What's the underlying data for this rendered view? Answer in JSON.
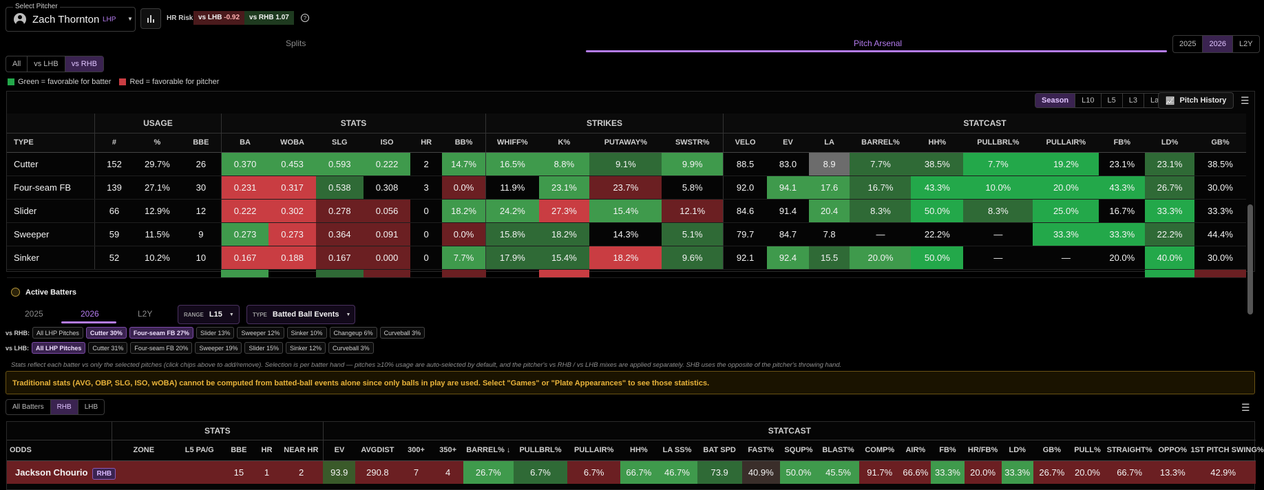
{
  "header": {
    "select_label": "Select Pitcher",
    "pitcher_name": "Zach Thornton",
    "pitcher_hand": "LHP",
    "hr_risk_label": "HR Risk",
    "vs_lhb_label": "vs LHB",
    "vs_lhb_value": "-0.92",
    "vs_rhb_label": "vs RHB",
    "vs_rhb_value": "1.07"
  },
  "top_tabs": {
    "splits": "Splits",
    "arsenal": "Pitch Arsenal"
  },
  "year_tabs": [
    "2025",
    "2026",
    "L2Y"
  ],
  "split_filter": [
    "All",
    "vs LHB",
    "vs RHB"
  ],
  "legend": {
    "green": "Green = favorable for batter",
    "red": "Red = favorable for pitcher"
  },
  "range_tabs": [
    "Season",
    "L10",
    "L5",
    "L3",
    "Last"
  ],
  "pitch_history_label": "Pitch History",
  "colors": {
    "accent": "#b57cf0",
    "green_strong": "#23a84a",
    "green": "#3f9a4c",
    "green_dark": "#2f6a36",
    "red_strong": "#c93d42",
    "red_dark": "#6b1f22"
  },
  "arsenal": {
    "groups": [
      "",
      "USAGE",
      "STATS",
      "STRIKES",
      "STATCAST"
    ],
    "columns": [
      "TYPE",
      "#",
      "%",
      "BBE",
      "BA",
      "WOBA",
      "SLG",
      "ISO",
      "HR",
      "BB%",
      "WHIFF%",
      "K%",
      "PUTAWAY%",
      "SWSTR%",
      "VELO",
      "EV",
      "LA",
      "BARREL%",
      "HH%",
      "PULLBRL%",
      "PULLAIR%",
      "FB%",
      "LD%",
      "GB%"
    ],
    "rows": [
      [
        "Cutter",
        "152",
        "29.7%",
        "26",
        "0.370",
        "0.453",
        "0.593",
        "0.222",
        "2",
        "14.7%",
        "16.5%",
        "8.8%",
        "9.1%",
        "9.9%",
        "88.5",
        "83.0",
        "8.9",
        "7.7%",
        "38.5%",
        "7.7%",
        "19.2%",
        "23.1%",
        "23.1%",
        "38.5%"
      ],
      [
        "Four-seam FB",
        "139",
        "27.1%",
        "30",
        "0.231",
        "0.317",
        "0.538",
        "0.308",
        "3",
        "0.0%",
        "11.9%",
        "23.1%",
        "23.7%",
        "5.8%",
        "92.0",
        "94.1",
        "17.6",
        "16.7%",
        "43.3%",
        "10.0%",
        "20.0%",
        "43.3%",
        "26.7%",
        "30.0%"
      ],
      [
        "Slider",
        "66",
        "12.9%",
        "12",
        "0.222",
        "0.302",
        "0.278",
        "0.056",
        "0",
        "18.2%",
        "24.2%",
        "27.3%",
        "15.4%",
        "12.1%",
        "84.6",
        "91.4",
        "20.4",
        "8.3%",
        "50.0%",
        "8.3%",
        "25.0%",
        "16.7%",
        "33.3%",
        "33.3%"
      ],
      [
        "Sweeper",
        "59",
        "11.5%",
        "9",
        "0.273",
        "0.273",
        "0.364",
        "0.091",
        "0",
        "0.0%",
        "15.8%",
        "18.2%",
        "14.3%",
        "5.1%",
        "79.7",
        "84.7",
        "7.8",
        "—",
        "22.2%",
        "—",
        "33.3%",
        "33.3%",
        "22.2%",
        "44.4%"
      ],
      [
        "Sinker",
        "52",
        "10.2%",
        "10",
        "0.167",
        "0.188",
        "0.167",
        "0.000",
        "0",
        "7.7%",
        "17.9%",
        "15.4%",
        "18.2%",
        "9.6%",
        "92.1",
        "92.4",
        "15.5",
        "20.0%",
        "50.0%",
        "—",
        "—",
        "20.0%",
        "40.0%",
        "30.0%"
      ]
    ]
  },
  "active_batters": {
    "title": "Active Batters",
    "year_tabs": [
      "2025",
      "2026",
      "L2Y"
    ],
    "range_label": "RANGE",
    "range_value": "L15",
    "type_label": "TYPE",
    "type_value": "Batted Ball Events"
  },
  "vs_rhb": {
    "label": "vs RHB:",
    "chips": [
      "All LHP Pitches",
      "Cutter 30%",
      "Four-seam FB 27%",
      "Slider 13%",
      "Sweeper 12%",
      "Sinker 10%",
      "Changeup 6%",
      "Curveball 3%"
    ]
  },
  "vs_lhb": {
    "label": "vs LHB:",
    "chips": [
      "All LHP Pitches",
      "Cutter 31%",
      "Four-seam FB 20%",
      "Sweeper 19%",
      "Slider 15%",
      "Sinker 12%",
      "Curveball 3%"
    ]
  },
  "note": "Stats reflect each batter vs only the selected pitches (click chips above to add/remove). Selection is per batter hand — pitches ≥10% usage are auto-selected by default, and the pitcher's vs RHB / vs LHB mixes are applied separately. SHB uses the opposite of the pitcher's throwing hand.",
  "warning": "Traditional stats (AVG, OBP, SLG, ISO, wOBA) cannot be computed from batted-ball events alone since only balls in play are used. Select \"Games\" or \"Plate Appearances\" to see those statistics.",
  "batter_filter": [
    "All Batters",
    "RHB",
    "LHB"
  ],
  "batters": {
    "groups": [
      "STATS",
      "STATCAST"
    ],
    "columns": [
      "ODDS",
      "ZONE",
      "L5 PA/G",
      "BBE",
      "HR",
      "NEAR HR",
      "EV",
      "AVGDIST",
      "300+",
      "350+",
      "BARREL% ↓",
      "PULLBRL%",
      "PULLAIR%",
      "HH%",
      "LA SS%",
      "BAT SPD",
      "FAST%",
      "SQUP%",
      "BLAST%",
      "COMP%",
      "AIR%",
      "FB%",
      "HR/FB%",
      "LD%",
      "GB%",
      "PULL%",
      "STRAIGHT%",
      "OPPO%",
      "1ST PITCH SWING%"
    ],
    "rows": [
      {
        "name": "Jackson Chourio",
        "hand": "RHB",
        "values": [
          "15",
          "1",
          "2",
          "93.9",
          "290.8",
          "7",
          "4",
          "26.7%",
          "6.7%",
          "6.7%",
          "66.7%",
          "46.7%",
          "73.9",
          "40.9%",
          "50.0%",
          "45.5%",
          "91.7%",
          "66.6%",
          "33.3%",
          "20.0%",
          "33.3%",
          "26.7%",
          "20.0%",
          "66.7%",
          "13.3%",
          "42.9%"
        ]
      }
    ]
  }
}
